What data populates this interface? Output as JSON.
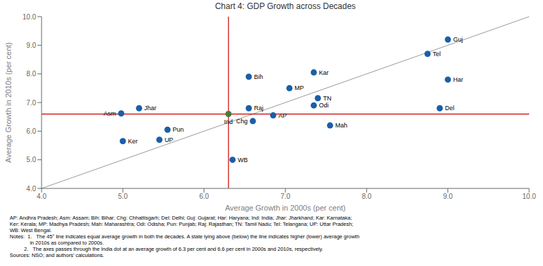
{
  "chart_data": {
    "type": "scatter",
    "title": "Chart 4: GDP Growth across Decades",
    "x_label": "Average Growth in 2000s (per cent)",
    "y_label": "Average Growth in 2010s (per cent)",
    "xlim": [
      4.0,
      10.0
    ],
    "ylim": [
      4.0,
      10.0
    ],
    "xticks": [
      {
        "value": 4.0,
        "label": "4.0"
      },
      {
        "value": 5.0,
        "label": "5.0"
      },
      {
        "value": 6.0,
        "label": "6.0"
      },
      {
        "value": 7.0,
        "label": "7.0"
      },
      {
        "value": 8.0,
        "label": "8.0"
      },
      {
        "value": 9.0,
        "label": "9.0"
      },
      {
        "value": 10.0,
        "label": "10.0"
      }
    ],
    "yticks": [
      {
        "value": 4.0,
        "label": "4.0"
      },
      {
        "value": 5.0,
        "label": "5.0"
      },
      {
        "value": 6.0,
        "label": "6.0"
      },
      {
        "value": 7.0,
        "label": "7.0"
      },
      {
        "value": 8.0,
        "label": "8.0"
      },
      {
        "value": 9.0,
        "label": "9.0"
      },
      {
        "value": 10.0,
        "label": "10.0"
      }
    ],
    "grid": false,
    "color": "#1a5fa8",
    "points": [
      {
        "label": "AP",
        "x": 6.85,
        "y": 6.55
      },
      {
        "label": "Asm",
        "x": 4.98,
        "y": 6.62
      },
      {
        "label": "Bih",
        "x": 6.55,
        "y": 7.9
      },
      {
        "label": "Chg",
        "x": 6.6,
        "y": 6.35
      },
      {
        "label": "Del",
        "x": 8.9,
        "y": 6.8
      },
      {
        "label": "Guj",
        "x": 9.0,
        "y": 9.2
      },
      {
        "label": "Har",
        "x": 9.0,
        "y": 7.8
      },
      {
        "label": "Jhar",
        "x": 5.2,
        "y": 6.8
      },
      {
        "label": "Kar",
        "x": 7.35,
        "y": 8.05
      },
      {
        "label": "Ker",
        "x": 5.0,
        "y": 5.65
      },
      {
        "label": "MP",
        "x": 7.05,
        "y": 7.5
      },
      {
        "label": "Mah",
        "x": 7.55,
        "y": 6.2
      },
      {
        "label": "Odi",
        "x": 7.35,
        "y": 6.9
      },
      {
        "label": "Pun",
        "x": 5.55,
        "y": 6.05
      },
      {
        "label": "Raj",
        "x": 6.55,
        "y": 6.8
      },
      {
        "label": "TN",
        "x": 7.4,
        "y": 7.15
      },
      {
        "label": "Tel",
        "x": 8.75,
        "y": 8.7
      },
      {
        "label": "UP",
        "x": 5.45,
        "y": 5.7
      },
      {
        "label": "WB",
        "x": 6.35,
        "y": 5.0
      }
    ],
    "highlight": {
      "label": "Ind",
      "x": 6.3,
      "y": 6.6,
      "color": "#4a7a3a"
    },
    "reference_lines": [
      {
        "axis": "y",
        "value": 6.6,
        "color": "#cc0000"
      },
      {
        "axis": "x",
        "value": 6.3,
        "color": "#cc0000"
      }
    ],
    "diagonal": {
      "x": [
        4.0,
        10.0
      ],
      "y": [
        4.0,
        10.0
      ],
      "color": "#999999"
    },
    "notes": [
      "AP: Andhra Pradesh; Asm: Assam; Bih: Bihar; Chg: Chhattisgarh; Del: Delhi; Guj: Gujarat; Har: Haryana; Ind: India; Jhar: Jharkhand; Kar: Karnataka;",
      "Ker: Kerala; MP: Madhya Pradesh; Mah: Maharashtra; Odi: Odisha; Pun: Punjab; Raj: Rajasthan; TN: Tamil Nadu; Tel: Telangana; UP: Uttar Pradesh;",
      "WB: West Bengal.",
      "Notes:  1.   The 45° line indicates equal average growth in both the decades. A state lying above (below) the line indicates higher (lower) average growth",
      "              in 2010s as compared to 2000s.",
      "          2.   The axes passes through the India dot at an average growth of 6.3 per cent and 6.6 per cent in 2000s and 2010s, respectively.",
      "Sources: NSO; and authors’ calculations."
    ]
  }
}
